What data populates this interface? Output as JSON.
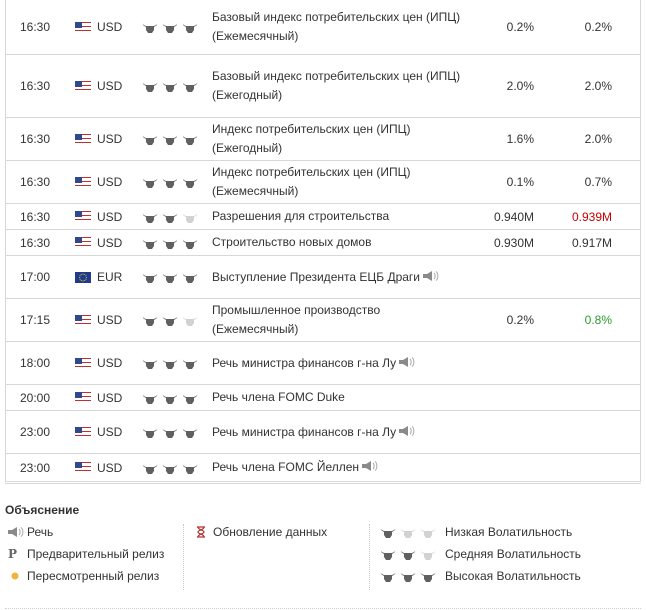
{
  "colors": {
    "bull_active": "#606060",
    "bull_inactive": "#d2d2d2",
    "negative": "#cc0000",
    "positive": "#2a9d2a",
    "border": "#d8d8d8"
  },
  "events": [
    {
      "time": "16:30",
      "flag": "us-flag-icon",
      "currency": "USD",
      "importance": 3,
      "event": "Базовый индекс потребительских цен (ИПЦ) (Ежемесячный)",
      "speech": false,
      "actual": "0.2%",
      "forecast": "0.2%",
      "forecast_style": "normal"
    },
    {
      "time": "16:30",
      "flag": "us-flag-icon",
      "currency": "USD",
      "importance": 3,
      "event": "Базовый индекс потребительских цен (ИПЦ) (Ежегодный)",
      "speech": false,
      "actual": "2.0%",
      "forecast": "2.0%",
      "forecast_style": "normal"
    },
    {
      "time": "16:30",
      "flag": "us-flag-icon",
      "currency": "USD",
      "importance": 3,
      "event": "Индекс потребительских цен (ИПЦ) (Ежегодный)",
      "speech": false,
      "actual": "1.6%",
      "forecast": "2.0%",
      "forecast_style": "normal"
    },
    {
      "time": "16:30",
      "flag": "us-flag-icon",
      "currency": "USD",
      "importance": 3,
      "event": "Индекс потребительских цен (ИПЦ) (Ежемесячный)",
      "speech": false,
      "actual": "0.1%",
      "forecast": "0.7%",
      "forecast_style": "normal"
    },
    {
      "time": "16:30",
      "flag": "us-flag-icon",
      "currency": "USD",
      "importance": 2,
      "event": "Разрешения для строительства",
      "speech": false,
      "actual": "0.940M",
      "forecast": "0.939M",
      "forecast_style": "negative"
    },
    {
      "time": "16:30",
      "flag": "us-flag-icon",
      "currency": "USD",
      "importance": 3,
      "event": "Строительство новых домов",
      "speech": false,
      "actual": "0.930M",
      "forecast": "0.917M",
      "forecast_style": "normal"
    },
    {
      "time": "17:00",
      "flag": "eu-flag-icon",
      "currency": "EUR",
      "importance": 3,
      "event": "Выступление Президента ЕЦБ Драги",
      "speech": true,
      "actual": "",
      "forecast": "",
      "forecast_style": "normal"
    },
    {
      "time": "17:15",
      "flag": "us-flag-icon",
      "currency": "USD",
      "importance": 2,
      "event": "Промышленное производство (Ежемесячный)",
      "speech": false,
      "actual": "0.2%",
      "forecast": "0.8%",
      "forecast_style": "positive"
    },
    {
      "time": "18:00",
      "flag": "us-flag-icon",
      "currency": "USD",
      "importance": 3,
      "event": "Речь министра финансов г-на Лу",
      "speech": true,
      "actual": "",
      "forecast": "",
      "forecast_style": "normal"
    },
    {
      "time": "20:00",
      "flag": "us-flag-icon",
      "currency": "USD",
      "importance": 3,
      "event": "Речь члена FOMC Duke",
      "speech": false,
      "actual": "",
      "forecast": "",
      "forecast_style": "normal"
    },
    {
      "time": "23:00",
      "flag": "us-flag-icon",
      "currency": "USD",
      "importance": 3,
      "event": "Речь министра финансов г-на Лу",
      "speech": true,
      "actual": "",
      "forecast": "",
      "forecast_style": "normal"
    },
    {
      "time": "23:00",
      "flag": "us-flag-icon",
      "currency": "USD",
      "importance": 3,
      "event": "Речь члена FOMC Йеллен",
      "speech": true,
      "actual": "",
      "forecast": "",
      "forecast_style": "normal"
    }
  ],
  "legend": {
    "title": "Объяснение",
    "speech": "Речь",
    "preliminary_symbol": "P",
    "preliminary": "Предварительный релиз",
    "revised": "Пересмотренный релиз",
    "data_update": "Обновление данных",
    "low": "Низкая Волатильность",
    "medium": "Средняя Волатильность",
    "high": "Высокая Волатильность"
  }
}
